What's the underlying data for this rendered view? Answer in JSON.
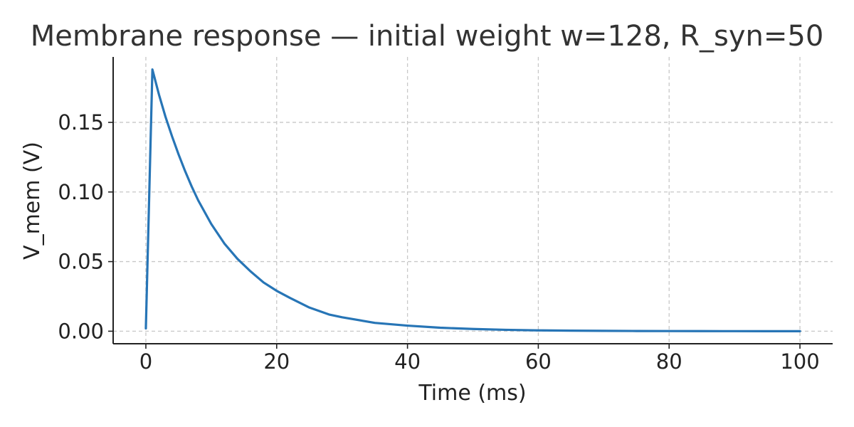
{
  "chart_data": {
    "type": "line",
    "title": "Membrane response — initial weight w=128, R_syn=50",
    "xlabel": "Time (ms)",
    "ylabel": "V_mem (V)",
    "xlim": [
      -5,
      105
    ],
    "ylim": [
      -0.009,
      0.197
    ],
    "x_ticks": [
      0,
      20,
      40,
      60,
      80,
      100
    ],
    "x_tick_labels": [
      "0",
      "20",
      "40",
      "60",
      "80",
      "100"
    ],
    "y_ticks": [
      0.0,
      0.05,
      0.1,
      0.15
    ],
    "y_tick_labels": [
      "0.00",
      "0.05",
      "0.10",
      "0.15"
    ],
    "grid": true,
    "legend": "none",
    "series": [
      {
        "color": "#2775b6",
        "x": [
          0,
          1,
          2,
          3,
          4,
          5,
          6,
          7,
          8,
          10,
          12,
          14,
          16,
          18,
          20,
          22,
          25,
          28,
          30,
          35,
          40,
          45,
          50,
          55,
          60,
          65,
          70,
          75,
          80,
          85,
          90,
          95,
          100
        ],
        "y": [
          0.002,
          0.188,
          0.17,
          0.154,
          0.14,
          0.127,
          0.115,
          0.104,
          0.094,
          0.077,
          0.063,
          0.052,
          0.043,
          0.035,
          0.029,
          0.024,
          0.017,
          0.012,
          0.01,
          0.006,
          0.004,
          0.0025,
          0.0016,
          0.001,
          0.0006,
          0.0004,
          0.00025,
          0.00015,
          0.0001,
          6e-05,
          4e-05,
          2e-05,
          1e-05
        ]
      }
    ]
  }
}
